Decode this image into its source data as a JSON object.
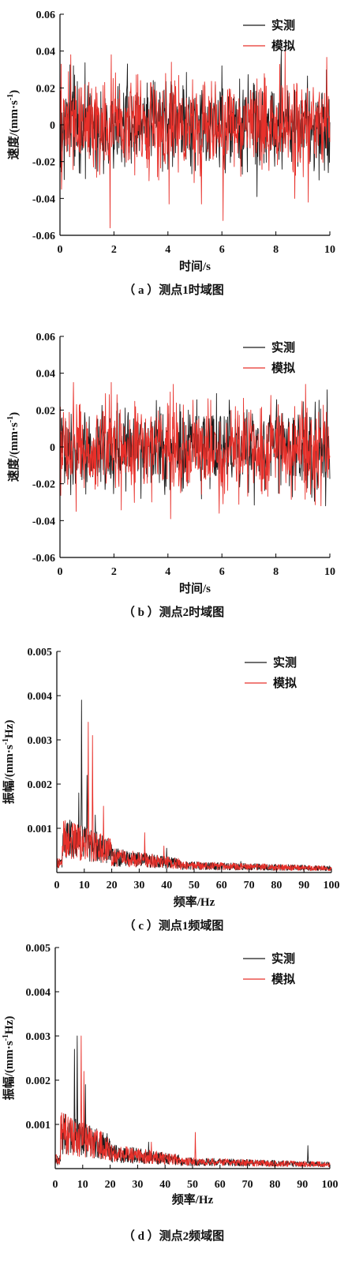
{
  "colors": {
    "measured": "#1a1a1a",
    "simulated": "#e8302a"
  },
  "chart_data": [
    {
      "type": "line",
      "caption": "（ a ）测点1时域图",
      "xlabel": "时间/s",
      "ylabel": "速度/(mm·s-1)",
      "xlim": [
        0,
        10
      ],
      "ylim": [
        -0.06,
        0.06
      ],
      "xticks": [
        "0",
        "2",
        "4",
        "6",
        "8",
        "10"
      ],
      "yticks": [
        "-0.06",
        "-0.04",
        "-0.02",
        "0",
        "0.02",
        "0.04",
        "0.06"
      ],
      "legend": [
        "实测",
        "模拟"
      ],
      "legend_position": "top-right",
      "series": [
        {
          "name": "实测",
          "amplitude": 0.012,
          "peaks": [
            [
              0.5,
              0.032
            ],
            [
              2.5,
              0.033
            ],
            [
              6.0,
              0.032
            ],
            [
              7.3,
              -0.039
            ],
            [
              8.2,
              0.04
            ],
            [
              9.6,
              -0.03
            ]
          ]
        },
        {
          "name": "模拟",
          "amplitude": 0.013,
          "peaks": [
            [
              0.05,
              -0.035
            ],
            [
              0.4,
              0.038
            ],
            [
              1.85,
              -0.056
            ],
            [
              1.9,
              0.038
            ],
            [
              4.05,
              -0.043
            ],
            [
              5.25,
              -0.043
            ],
            [
              6.05,
              -0.052
            ],
            [
              8.35,
              0.041
            ],
            [
              8.7,
              -0.04
            ],
            [
              9.2,
              -0.042
            ]
          ]
        }
      ]
    },
    {
      "type": "line",
      "caption": "（ b ）测点2时域图",
      "xlabel": "时间/s",
      "ylabel": "速度/(mm·s-1)",
      "xlim": [
        0,
        10
      ],
      "ylim": [
        -0.06,
        0.06
      ],
      "xticks": [
        "0",
        "2",
        "4",
        "6",
        "8",
        "10"
      ],
      "yticks": [
        "-0.06",
        "-0.04",
        "-0.02",
        "0",
        "0.02",
        "0.04",
        "0.06"
      ],
      "legend": [
        "实测",
        "模拟"
      ],
      "legend_position": "top-right",
      "series": [
        {
          "name": "实测",
          "amplitude": 0.011,
          "peaks": [
            [
              5.8,
              0.029
            ],
            [
              9.9,
              0.031
            ],
            [
              9.85,
              -0.032
            ],
            [
              3.0,
              -0.028
            ]
          ]
        },
        {
          "name": "模拟",
          "amplitude": 0.012,
          "peaks": [
            [
              0.5,
              0.035
            ],
            [
              1.9,
              0.035
            ],
            [
              4.1,
              -0.039
            ],
            [
              4.2,
              0.034
            ],
            [
              5.9,
              -0.036
            ],
            [
              9.1,
              0.034
            ],
            [
              0.6,
              -0.035
            ]
          ]
        }
      ]
    },
    {
      "type": "line",
      "caption": "（ c ）测点1频域图",
      "xlabel": "频率/Hz",
      "ylabel": "振幅/(mm·s-1Hz)",
      "xlim": [
        0,
        100
      ],
      "ylim": [
        0,
        0.005
      ],
      "xticks": [
        "0",
        "10",
        "20",
        "30",
        "40",
        "50",
        "60",
        "70",
        "80",
        "90",
        "100"
      ],
      "yticks": [
        "0.001",
        "0.002",
        "0.003",
        "0.004",
        "0.005"
      ],
      "legend": [
        "实测",
        "模拟"
      ],
      "legend_position": "top-right",
      "series": [
        {
          "name": "实测",
          "peaks": [
            [
              9,
              0.0039
            ],
            [
              8,
              0.0018
            ],
            [
              11,
              0.0022
            ],
            [
              14,
              0.0013
            ],
            [
              40,
              0.00055
            ],
            [
              67,
              0.00025
            ]
          ]
        },
        {
          "name": "模拟",
          "peaks": [
            [
              11.5,
              0.0034
            ],
            [
              13,
              0.0031
            ],
            [
              17,
              0.0015
            ],
            [
              32,
              0.0009
            ],
            [
              39,
              0.0006
            ]
          ]
        }
      ]
    },
    {
      "type": "line",
      "caption": "（ d ）测点2频域图",
      "xlabel": "频率/Hz",
      "ylabel": "振幅/(mm·s-1Hz)",
      "xlim": [
        0,
        100
      ],
      "ylim": [
        0,
        0.005
      ],
      "xticks": [
        "0",
        "10",
        "20",
        "30",
        "40",
        "50",
        "60",
        "70",
        "80",
        "90",
        "100"
      ],
      "yticks": [
        "0.001",
        "0.002",
        "0.003",
        "0.004",
        "0.005"
      ],
      "legend": [
        "实测",
        "模拟"
      ],
      "legend_position": "top-right",
      "series": [
        {
          "name": "实测",
          "peaks": [
            [
              7,
              0.0027
            ],
            [
              8,
              0.003
            ],
            [
              11,
              0.0019
            ],
            [
              34,
              0.0006
            ],
            [
              92,
              0.00052
            ]
          ]
        },
        {
          "name": "模拟",
          "peaks": [
            [
              9.5,
              0.003
            ],
            [
              10.5,
              0.0022
            ],
            [
              15,
              0.0008
            ],
            [
              35,
              0.0006
            ],
            [
              51,
              0.00082
            ]
          ]
        }
      ]
    }
  ]
}
